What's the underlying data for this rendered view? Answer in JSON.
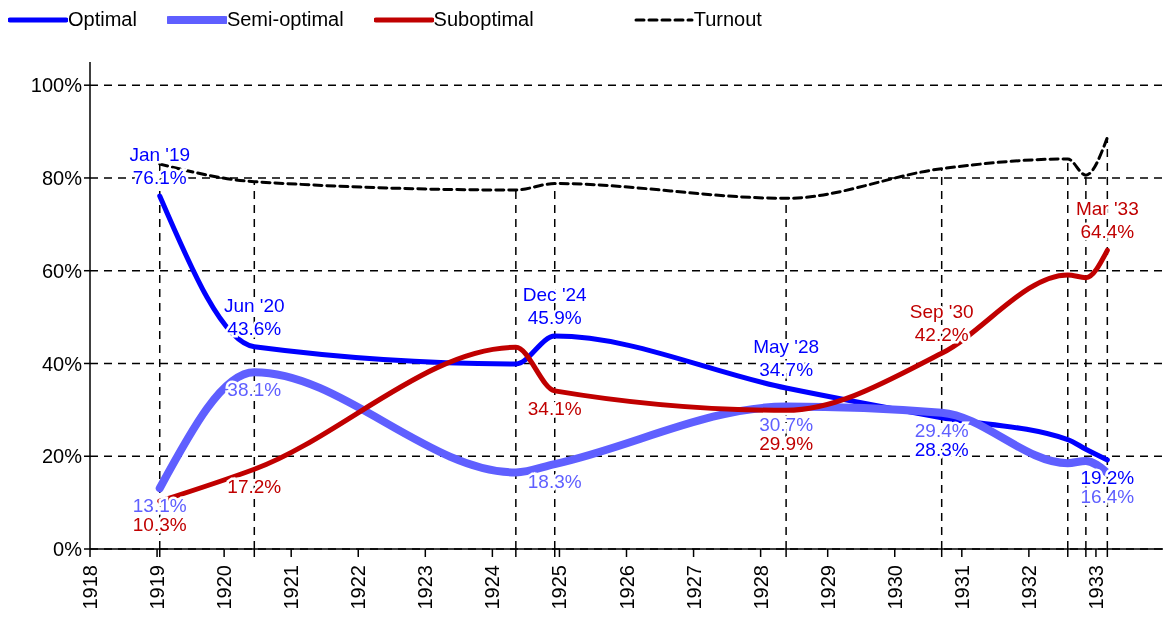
{
  "chart_data": {
    "type": "line",
    "x": [
      1919.04,
      1920.45,
      1924.35,
      1924.93,
      1928.38,
      1930.7,
      1932.58,
      1932.85,
      1933.17
    ],
    "series": [
      {
        "name": "Optimal",
        "color": "#0000ff",
        "values": [
          76.1,
          43.6,
          39.9,
          45.9,
          34.7,
          28.3,
          23.6,
          21.5,
          19.2
        ],
        "value_labels": [
          "76.1%",
          "43.6%",
          null,
          "45.9%",
          "34.7%",
          "28.3%",
          null,
          null,
          "19.2%"
        ]
      },
      {
        "name": "Semi-optimal",
        "color": "#5f5fff",
        "values": [
          13.1,
          38.1,
          16.5,
          18.3,
          30.7,
          29.4,
          18.5,
          19.0,
          16.4
        ],
        "value_labels": [
          "13.1%",
          "38.1%",
          null,
          "18.3%",
          "30.7%",
          "29.4%",
          null,
          null,
          "16.4%"
        ]
      },
      {
        "name": "Suboptimal",
        "color": "#c00000",
        "values": [
          10.3,
          17.2,
          43.5,
          34.1,
          29.9,
          42.2,
          59.1,
          58.5,
          64.4
        ],
        "value_labels": [
          "10.3%",
          "17.2%",
          null,
          "34.1%",
          "29.9%",
          "42.2%",
          null,
          null,
          "64.4%"
        ]
      },
      {
        "name": "Turnout",
        "color": "#000000",
        "line_style": "dashed",
        "values": [
          83.0,
          79.2,
          77.4,
          78.8,
          75.6,
          82.0,
          84.1,
          80.6,
          88.7
        ]
      }
    ],
    "annotations": [
      {
        "text": "Jan '19",
        "x": 1919.04,
        "y": 76.1
      },
      {
        "text": "Jun '20",
        "x": 1920.45,
        "y": 43.6
      },
      {
        "text": "Dec '24",
        "x": 1924.93,
        "y": 45.9
      },
      {
        "text": "May '28",
        "x": 1928.38,
        "y": 34.7
      },
      {
        "text": "Sep '30",
        "x": 1930.7,
        "y": 42.2
      },
      {
        "text": "Mar '33",
        "x": 1933.17,
        "y": 64.4
      }
    ],
    "ref_lines": [
      {
        "axis": "x",
        "value": 1919.04
      },
      {
        "axis": "x",
        "value": 1920.45
      },
      {
        "axis": "x",
        "value": 1924.35
      },
      {
        "axis": "x",
        "value": 1924.93
      },
      {
        "axis": "x",
        "value": 1928.38
      },
      {
        "axis": "x",
        "value": 1930.7
      },
      {
        "axis": "x",
        "value": 1932.58
      },
      {
        "axis": "x",
        "value": 1932.85
      },
      {
        "axis": "x",
        "value": 1933.17
      }
    ],
    "xlim": [
      1918,
      1934
    ],
    "xticks": [
      1918,
      1919,
      {
        "value": 1919.04,
        "label": null
      },
      1920,
      {
        "value": 1920.45,
        "label": null
      },
      1921,
      1922,
      1923,
      1924,
      {
        "value": 1924.35,
        "label": null
      },
      {
        "value": 1924.93,
        "label": null
      },
      1925,
      1926,
      1927,
      1928,
      {
        "value": 1928.38,
        "label": null
      },
      1929,
      1930,
      {
        "value": 1930.7,
        "label": null
      },
      1931,
      1932,
      {
        "value": 1932.58,
        "label": null
      },
      {
        "value": 1932.85,
        "label": null
      },
      1933,
      {
        "value": 1933.17,
        "label": null
      }
    ],
    "ylim": [
      0,
      105
    ],
    "yticks": [
      {
        "value": 0,
        "label": "0%"
      },
      {
        "value": 20,
        "label": "20%"
      },
      {
        "value": 40,
        "label": "40%"
      },
      {
        "value": 60,
        "label": "60%"
      },
      {
        "value": 80,
        "label": "80%"
      },
      {
        "value": 100,
        "label": "100%"
      }
    ],
    "grid": "y",
    "legend": "top"
  }
}
